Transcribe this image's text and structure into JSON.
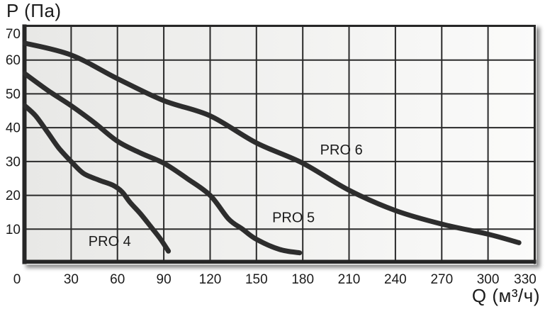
{
  "chart_data": {
    "type": "line",
    "xlabel": "Q (м³/ч)",
    "ylabel": "P (Па)",
    "xlim": [
      0,
      330
    ],
    "ylim": [
      0,
      70
    ],
    "x_ticks": [
      0,
      30,
      60,
      90,
      120,
      150,
      180,
      210,
      240,
      270,
      300,
      330
    ],
    "y_ticks": [
      10,
      20,
      30,
      40,
      50,
      60,
      70
    ],
    "grid": true,
    "grid_step": {
      "x": 30,
      "y": 10
    },
    "legend_position": "inline-labels",
    "series": [
      {
        "name": "PRO 4",
        "label_at": {
          "q": 55,
          "p": 6.5
        },
        "points": [
          [
            0,
            46.5
          ],
          [
            7,
            43.5
          ],
          [
            15,
            38.5
          ],
          [
            22,
            34
          ],
          [
            30,
            30
          ],
          [
            38,
            26.5
          ],
          [
            48,
            24.5
          ],
          [
            57,
            23
          ],
          [
            63,
            21
          ],
          [
            68,
            18
          ],
          [
            75,
            14.5
          ],
          [
            82,
            10.5
          ],
          [
            88,
            7
          ],
          [
            93,
            3.5
          ]
        ]
      },
      {
        "name": "PRO 5",
        "label_at": {
          "q": 174,
          "p": 13.5
        },
        "points": [
          [
            0,
            56
          ],
          [
            15,
            51
          ],
          [
            30,
            46.5
          ],
          [
            45,
            41.5
          ],
          [
            60,
            36
          ],
          [
            75,
            32.5
          ],
          [
            90,
            29.5
          ],
          [
            105,
            25
          ],
          [
            120,
            20
          ],
          [
            132,
            13
          ],
          [
            141,
            10
          ],
          [
            150,
            7
          ],
          [
            165,
            4
          ],
          [
            178,
            3
          ]
        ]
      },
      {
        "name": "PRO 6",
        "label_at": {
          "q": 205,
          "p": 33.5
        },
        "points": [
          [
            0,
            65
          ],
          [
            30,
            61.5
          ],
          [
            60,
            54.5
          ],
          [
            90,
            48
          ],
          [
            120,
            43.5
          ],
          [
            150,
            35.5
          ],
          [
            180,
            29.5
          ],
          [
            210,
            21.5
          ],
          [
            240,
            15.5
          ],
          [
            270,
            11.5
          ],
          [
            300,
            8.5
          ],
          [
            320,
            6
          ]
        ]
      }
    ]
  },
  "colors": {
    "line": "#2d2d2d",
    "grid": "#2a2a2a",
    "frame": "#262626",
    "text": "#1b1b1b",
    "plot_bg_left": "#e8e8e6",
    "plot_bg_right": "#fbfbfa"
  }
}
